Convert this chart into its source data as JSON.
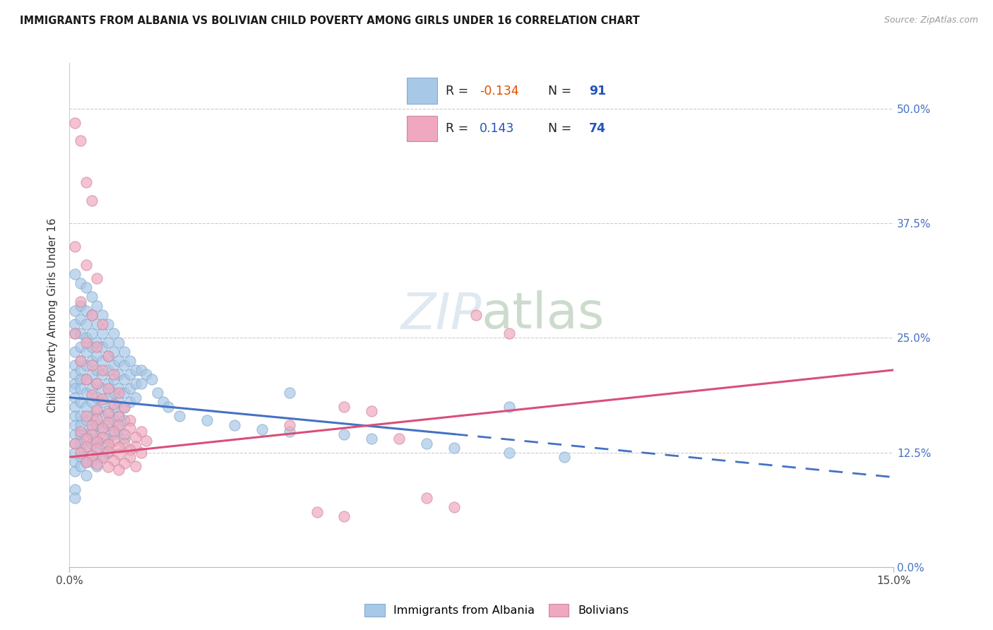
{
  "title": "IMMIGRANTS FROM ALBANIA VS BOLIVIAN CHILD POVERTY AMONG GIRLS UNDER 16 CORRELATION CHART",
  "source": "Source: ZipAtlas.com",
  "ylabel": "Child Poverty Among Girls Under 16",
  "albania_color": "#a8c8e8",
  "albania_edge": "#88aacc",
  "bolivia_color": "#f0a8c0",
  "bolivia_edge": "#cc8899",
  "trend_albania_color": "#4472c4",
  "trend_bolivia_color": "#d94f7a",
  "background_color": "#ffffff",
  "watermark_color": "#e0e8f0",
  "albania_dots": [
    [
      0.001,
      0.32
    ],
    [
      0.001,
      0.28
    ],
    [
      0.001,
      0.265
    ],
    [
      0.001,
      0.255
    ],
    [
      0.001,
      0.235
    ],
    [
      0.001,
      0.22
    ],
    [
      0.001,
      0.21
    ],
    [
      0.001,
      0.2
    ],
    [
      0.001,
      0.195
    ],
    [
      0.001,
      0.185
    ],
    [
      0.001,
      0.175
    ],
    [
      0.001,
      0.165
    ],
    [
      0.001,
      0.155
    ],
    [
      0.001,
      0.145
    ],
    [
      0.001,
      0.135
    ],
    [
      0.001,
      0.125
    ],
    [
      0.001,
      0.115
    ],
    [
      0.001,
      0.105
    ],
    [
      0.001,
      0.085
    ],
    [
      0.001,
      0.075
    ],
    [
      0.002,
      0.31
    ],
    [
      0.002,
      0.285
    ],
    [
      0.002,
      0.27
    ],
    [
      0.002,
      0.255
    ],
    [
      0.002,
      0.24
    ],
    [
      0.002,
      0.225
    ],
    [
      0.002,
      0.215
    ],
    [
      0.002,
      0.205
    ],
    [
      0.002,
      0.195
    ],
    [
      0.002,
      0.18
    ],
    [
      0.002,
      0.165
    ],
    [
      0.002,
      0.155
    ],
    [
      0.002,
      0.145
    ],
    [
      0.002,
      0.135
    ],
    [
      0.002,
      0.12
    ],
    [
      0.002,
      0.11
    ],
    [
      0.003,
      0.305
    ],
    [
      0.003,
      0.28
    ],
    [
      0.003,
      0.265
    ],
    [
      0.003,
      0.25
    ],
    [
      0.003,
      0.235
    ],
    [
      0.003,
      0.22
    ],
    [
      0.003,
      0.205
    ],
    [
      0.003,
      0.19
    ],
    [
      0.003,
      0.175
    ],
    [
      0.003,
      0.16
    ],
    [
      0.003,
      0.145
    ],
    [
      0.003,
      0.13
    ],
    [
      0.003,
      0.115
    ],
    [
      0.003,
      0.1
    ],
    [
      0.004,
      0.295
    ],
    [
      0.004,
      0.275
    ],
    [
      0.004,
      0.255
    ],
    [
      0.004,
      0.24
    ],
    [
      0.004,
      0.225
    ],
    [
      0.004,
      0.21
    ],
    [
      0.004,
      0.195
    ],
    [
      0.004,
      0.18
    ],
    [
      0.004,
      0.165
    ],
    [
      0.004,
      0.15
    ],
    [
      0.004,
      0.135
    ],
    [
      0.004,
      0.115
    ],
    [
      0.005,
      0.285
    ],
    [
      0.005,
      0.265
    ],
    [
      0.005,
      0.245
    ],
    [
      0.005,
      0.23
    ],
    [
      0.005,
      0.215
    ],
    [
      0.005,
      0.2
    ],
    [
      0.005,
      0.185
    ],
    [
      0.005,
      0.17
    ],
    [
      0.005,
      0.155
    ],
    [
      0.005,
      0.14
    ],
    [
      0.005,
      0.125
    ],
    [
      0.005,
      0.11
    ],
    [
      0.006,
      0.275
    ],
    [
      0.006,
      0.255
    ],
    [
      0.006,
      0.24
    ],
    [
      0.006,
      0.225
    ],
    [
      0.006,
      0.21
    ],
    [
      0.006,
      0.195
    ],
    [
      0.006,
      0.18
    ],
    [
      0.006,
      0.165
    ],
    [
      0.006,
      0.15
    ],
    [
      0.006,
      0.135
    ],
    [
      0.006,
      0.12
    ],
    [
      0.007,
      0.265
    ],
    [
      0.007,
      0.245
    ],
    [
      0.007,
      0.23
    ],
    [
      0.007,
      0.215
    ],
    [
      0.007,
      0.2
    ],
    [
      0.007,
      0.185
    ],
    [
      0.007,
      0.17
    ],
    [
      0.007,
      0.155
    ],
    [
      0.007,
      0.14
    ],
    [
      0.007,
      0.125
    ],
    [
      0.008,
      0.255
    ],
    [
      0.008,
      0.235
    ],
    [
      0.008,
      0.22
    ],
    [
      0.008,
      0.205
    ],
    [
      0.008,
      0.19
    ],
    [
      0.008,
      0.175
    ],
    [
      0.008,
      0.16
    ],
    [
      0.008,
      0.145
    ],
    [
      0.009,
      0.245
    ],
    [
      0.009,
      0.225
    ],
    [
      0.009,
      0.21
    ],
    [
      0.009,
      0.195
    ],
    [
      0.009,
      0.18
    ],
    [
      0.009,
      0.165
    ],
    [
      0.009,
      0.15
    ],
    [
      0.01,
      0.235
    ],
    [
      0.01,
      0.22
    ],
    [
      0.01,
      0.205
    ],
    [
      0.01,
      0.19
    ],
    [
      0.01,
      0.175
    ],
    [
      0.01,
      0.16
    ],
    [
      0.01,
      0.14
    ],
    [
      0.011,
      0.225
    ],
    [
      0.011,
      0.21
    ],
    [
      0.011,
      0.195
    ],
    [
      0.011,
      0.18
    ],
    [
      0.012,
      0.215
    ],
    [
      0.012,
      0.2
    ],
    [
      0.012,
      0.185
    ],
    [
      0.013,
      0.215
    ],
    [
      0.013,
      0.2
    ],
    [
      0.014,
      0.21
    ],
    [
      0.015,
      0.205
    ],
    [
      0.016,
      0.19
    ],
    [
      0.017,
      0.18
    ],
    [
      0.018,
      0.175
    ],
    [
      0.02,
      0.165
    ],
    [
      0.025,
      0.16
    ],
    [
      0.03,
      0.155
    ],
    [
      0.035,
      0.15
    ],
    [
      0.04,
      0.148
    ],
    [
      0.05,
      0.145
    ],
    [
      0.055,
      0.14
    ],
    [
      0.065,
      0.135
    ],
    [
      0.07,
      0.13
    ],
    [
      0.08,
      0.125
    ],
    [
      0.09,
      0.12
    ],
    [
      0.04,
      0.19
    ],
    [
      0.08,
      0.175
    ]
  ],
  "bolivia_dots": [
    [
      0.001,
      0.485
    ],
    [
      0.002,
      0.465
    ],
    [
      0.003,
      0.42
    ],
    [
      0.004,
      0.4
    ],
    [
      0.001,
      0.35
    ],
    [
      0.003,
      0.33
    ],
    [
      0.005,
      0.315
    ],
    [
      0.002,
      0.29
    ],
    [
      0.004,
      0.275
    ],
    [
      0.006,
      0.265
    ],
    [
      0.001,
      0.255
    ],
    [
      0.003,
      0.245
    ],
    [
      0.005,
      0.24
    ],
    [
      0.007,
      0.23
    ],
    [
      0.002,
      0.225
    ],
    [
      0.004,
      0.22
    ],
    [
      0.006,
      0.215
    ],
    [
      0.008,
      0.21
    ],
    [
      0.003,
      0.205
    ],
    [
      0.005,
      0.2
    ],
    [
      0.007,
      0.195
    ],
    [
      0.009,
      0.19
    ],
    [
      0.004,
      0.188
    ],
    [
      0.006,
      0.183
    ],
    [
      0.008,
      0.178
    ],
    [
      0.01,
      0.174
    ],
    [
      0.005,
      0.172
    ],
    [
      0.007,
      0.168
    ],
    [
      0.009,
      0.164
    ],
    [
      0.011,
      0.16
    ],
    [
      0.003,
      0.165
    ],
    [
      0.005,
      0.162
    ],
    [
      0.007,
      0.158
    ],
    [
      0.009,
      0.155
    ],
    [
      0.011,
      0.152
    ],
    [
      0.013,
      0.148
    ],
    [
      0.004,
      0.155
    ],
    [
      0.006,
      0.152
    ],
    [
      0.008,
      0.148
    ],
    [
      0.01,
      0.145
    ],
    [
      0.012,
      0.142
    ],
    [
      0.014,
      0.138
    ],
    [
      0.002,
      0.148
    ],
    [
      0.004,
      0.145
    ],
    [
      0.006,
      0.142
    ],
    [
      0.008,
      0.138
    ],
    [
      0.01,
      0.135
    ],
    [
      0.012,
      0.132
    ],
    [
      0.003,
      0.14
    ],
    [
      0.005,
      0.137
    ],
    [
      0.007,
      0.134
    ],
    [
      0.009,
      0.131
    ],
    [
      0.011,
      0.128
    ],
    [
      0.013,
      0.125
    ],
    [
      0.001,
      0.135
    ],
    [
      0.003,
      0.132
    ],
    [
      0.005,
      0.129
    ],
    [
      0.007,
      0.126
    ],
    [
      0.009,
      0.123
    ],
    [
      0.011,
      0.12
    ],
    [
      0.002,
      0.125
    ],
    [
      0.004,
      0.122
    ],
    [
      0.006,
      0.119
    ],
    [
      0.008,
      0.116
    ],
    [
      0.01,
      0.113
    ],
    [
      0.012,
      0.11
    ],
    [
      0.003,
      0.115
    ],
    [
      0.005,
      0.112
    ],
    [
      0.007,
      0.109
    ],
    [
      0.009,
      0.106
    ],
    [
      0.074,
      0.275
    ],
    [
      0.08,
      0.255
    ],
    [
      0.05,
      0.175
    ],
    [
      0.055,
      0.17
    ],
    [
      0.04,
      0.155
    ],
    [
      0.06,
      0.14
    ],
    [
      0.065,
      0.075
    ],
    [
      0.07,
      0.065
    ],
    [
      0.045,
      0.06
    ],
    [
      0.05,
      0.055
    ]
  ],
  "xlim": [
    0.0,
    0.15
  ],
  "ylim": [
    0.0,
    0.55
  ],
  "y_ticks": [
    0.0,
    0.125,
    0.25,
    0.375,
    0.5
  ],
  "y_tick_labels": [
    "",
    "12.5%",
    "25.0%",
    "37.5%",
    "50.0%"
  ],
  "x_ticks": [
    0.0,
    0.15
  ],
  "x_tick_labels": [
    "0.0%",
    "15.0%"
  ],
  "trend_alb_x0": 0.0,
  "trend_alb_y0": 0.185,
  "trend_alb_x1": 0.07,
  "trend_alb_y1": 0.145,
  "trend_alb_dash_x0": 0.07,
  "trend_alb_dash_y0": 0.145,
  "trend_alb_dash_x1": 0.15,
  "trend_alb_dash_y1": 0.098,
  "trend_bol_x0": 0.0,
  "trend_bol_y0": 0.12,
  "trend_bol_x1": 0.15,
  "trend_bol_y1": 0.215
}
